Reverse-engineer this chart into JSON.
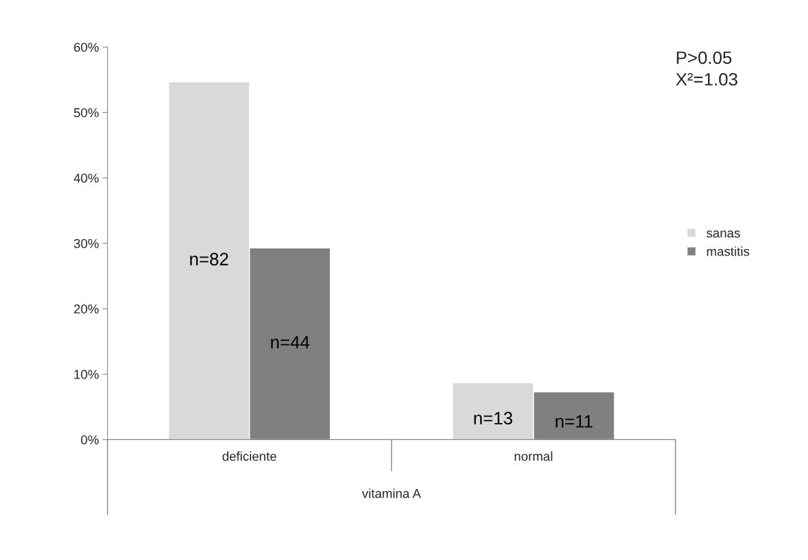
{
  "chart_data": {
    "type": "bar",
    "xlabel": "vitamina A",
    "categories": [
      "deficiente",
      "normal"
    ],
    "series": [
      {
        "name": "sanas",
        "color": "#d9d9d9",
        "values": [
          54.7,
          8.7
        ]
      },
      {
        "name": "mastitis",
        "color": "#808080",
        "values": [
          29.3,
          7.3
        ]
      }
    ],
    "ylim": [
      0,
      60
    ],
    "yticks": [
      {
        "value": 0,
        "label": "0%"
      },
      {
        "value": 10,
        "label": "10%"
      },
      {
        "value": 20,
        "label": "20%"
      },
      {
        "value": 30,
        "label": "30%"
      },
      {
        "value": 40,
        "label": "40%"
      },
      {
        "value": 50,
        "label": "50%"
      },
      {
        "value": 60,
        "label": "60%"
      }
    ],
    "annotations": [
      "P>0.05",
      "X²=1.03",
      "n=82",
      "n=13",
      "n=44",
      "n=11"
    ],
    "grid": false,
    "legend": "right"
  }
}
